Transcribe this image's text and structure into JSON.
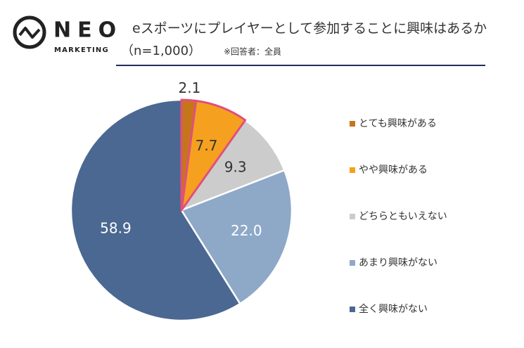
{
  "logo": {
    "name": "NEO",
    "tagline": "MARKETING"
  },
  "chart_data": {
    "type": "pie",
    "title": "eスポーツにプレイヤーとして参加することに興味はあるか",
    "subtitle": "（n=1,000）",
    "note": "※回答者：全員",
    "categories": [
      "とても興味がある",
      "やや興味がある",
      "どちらともいえない",
      "あまり興味がない",
      "全く興味がない"
    ],
    "values": [
      2.1,
      7.7,
      9.3,
      22.0,
      58.9
    ],
    "value_labels": [
      "2.1",
      "7.7",
      "9.3",
      "22.0",
      "58.9"
    ],
    "colors": [
      "#c5761a",
      "#f5a01e",
      "#cccccc",
      "#8ea8c8",
      "#4a6891"
    ],
    "highlight": {
      "color": "#e0507a",
      "categories": [
        0,
        1
      ]
    },
    "legend": "right"
  }
}
